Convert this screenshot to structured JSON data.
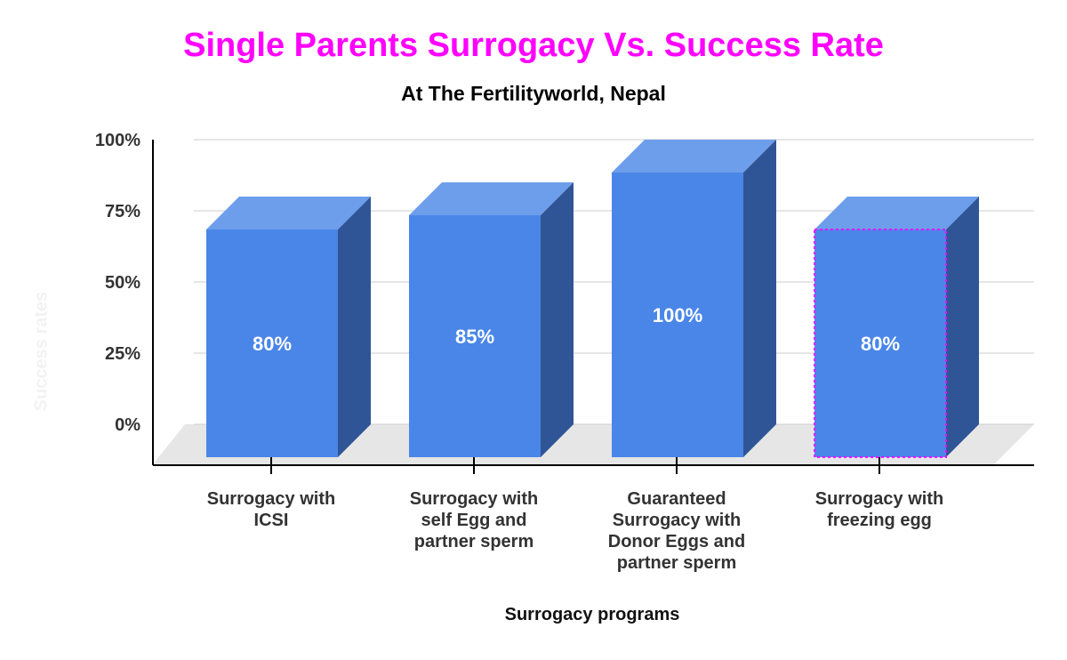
{
  "chart_data": {
    "type": "bar",
    "title": "Single Parents Surrogacy Vs. Success Rate",
    "subtitle": "At The Fertilityworld, Nepal",
    "xlabel": "Surrogacy programs",
    "ylabel": "Success rates",
    "categories": [
      "Surrogacy with ICSI",
      "Surrogacy with self Egg and partner sperm",
      "Guaranteed Surrogacy with Donor Eggs and partner sperm",
      "Surrogacy with freezing egg"
    ],
    "category_lines": [
      [
        "Surrogacy with",
        "ICSI"
      ],
      [
        "Surrogacy with",
        "self Egg and",
        "partner sperm"
      ],
      [
        "Guaranteed",
        "Surrogacy with",
        "Donor Eggs and",
        "partner sperm"
      ],
      [
        "Surrogacy with",
        "freezing egg"
      ]
    ],
    "values": [
      80,
      85,
      100,
      80
    ],
    "data_labels": [
      "80%",
      "85%",
      "100%",
      "80%"
    ],
    "ylim": [
      0,
      100
    ],
    "yticks": [
      0,
      25,
      50,
      75,
      100
    ],
    "ytick_labels": [
      "0%",
      "25%",
      "50%",
      "75%",
      "100%"
    ],
    "grid": true,
    "highlighted_index": 3,
    "colors": {
      "title": "#ff00ff",
      "bar_front": "#4a86e8",
      "bar_top": "#6d9eeb",
      "bar_side": "#2f5597",
      "floor": "#e6e6e6",
      "grid": "#cccccc",
      "highlight": "#ff00ff"
    }
  }
}
